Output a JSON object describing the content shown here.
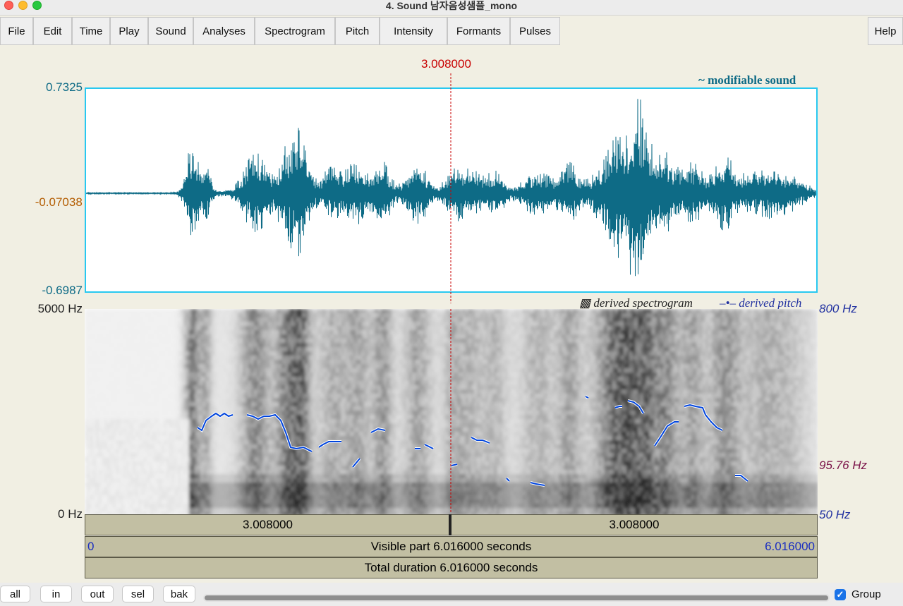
{
  "window": {
    "title": "4. Sound 남자음성샘플_mono"
  },
  "menu": {
    "items": [
      "File",
      "Edit",
      "Time",
      "Play",
      "Sound",
      "Analyses",
      "Spectrogram",
      "Pitch",
      "Intensity",
      "Formants",
      "Pulses"
    ],
    "help": "Help"
  },
  "cursor": {
    "time": "3.008000"
  },
  "waveform": {
    "label": "~ modifiable sound",
    "y_top": "0.7325",
    "y_mid": "-0.07038",
    "y_bottom": "-0.6987",
    "colors": {
      "wave": "#0e6b86",
      "axis": "#0e6b86",
      "mid": "#b35c00",
      "border": "#28c8f0"
    }
  },
  "spectrogram": {
    "legend_spec": "derived spectrogram",
    "legend_pitch": "derived pitch",
    "freq_top": "5000 Hz",
    "freq_bottom": "0 Hz",
    "pitch_top": "800 Hz",
    "pitch_mid": "95.76 Hz",
    "pitch_bottom": "50 Hz",
    "colors": {
      "pitch": "#0044dd",
      "pitch_label": "#2030a0",
      "pitch_mid": "#7a1248"
    }
  },
  "bars": {
    "left_segment": "3.008000",
    "right_segment": "3.008000",
    "visible_start": "0",
    "visible_label": "Visible part 6.016000 seconds",
    "visible_end": "6.016000",
    "total_label": "Total duration 6.016000 seconds"
  },
  "nav": {
    "all": "all",
    "in": "in",
    "out": "out",
    "sel": "sel",
    "bak": "bak",
    "group_label": "Group",
    "group_checked": true
  }
}
